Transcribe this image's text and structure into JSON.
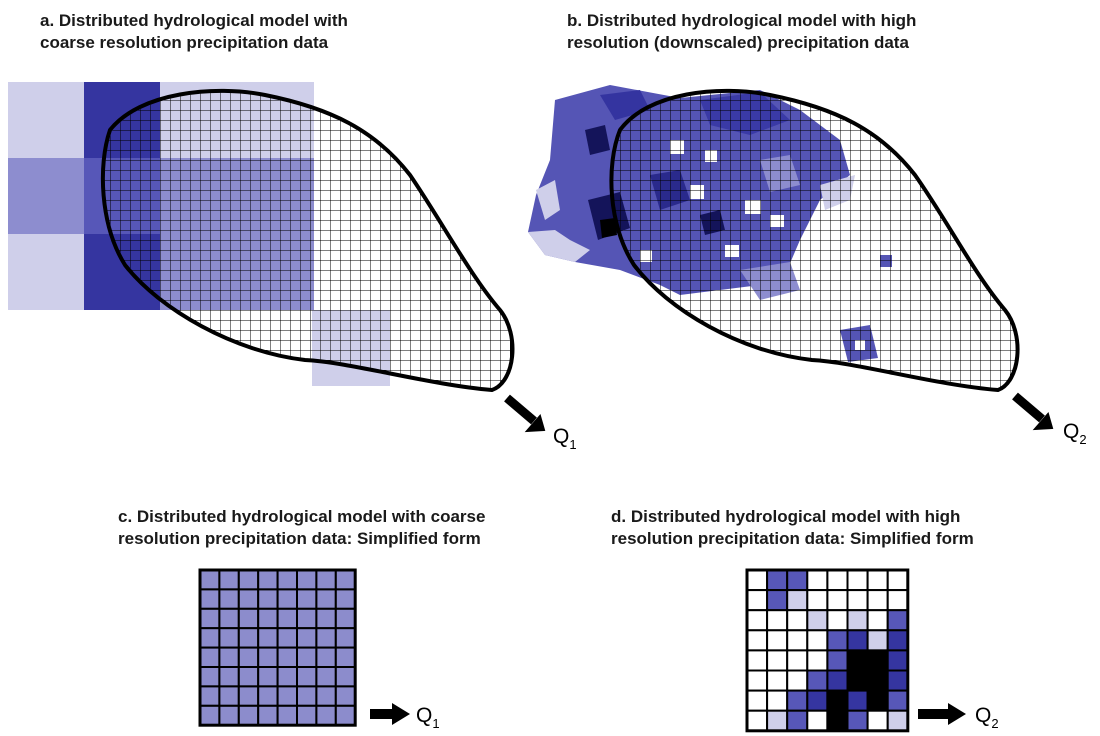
{
  "panels": {
    "a": {
      "caption_line1": "a. Distributed hydrological model with",
      "caption_line2": "coarse resolution precipitation data",
      "outlet": "Q",
      "outlet_sub": "1"
    },
    "b": {
      "caption_line1": "b. Distributed hydrological model with high",
      "caption_line2": "resolution (downscaled) precipitation data",
      "outlet": "Q",
      "outlet_sub": "2"
    },
    "c": {
      "caption_line1": "c. Distributed hydrological model with coarse",
      "caption_line2": "resolution precipitation data: Simplified form",
      "outlet": "Q",
      "outlet_sub": "1"
    },
    "d": {
      "caption_line1": "d. Distributed hydrological model with high",
      "caption_line2": "resolution precipitation data: Simplified form",
      "outlet": "Q",
      "outlet_sub": "2"
    }
  },
  "colors": {
    "c0": "#ffffff",
    "c1": "#cfcfea",
    "c2": "#8d8dcf",
    "c3": "#5757b8",
    "c4": "#3535a0",
    "c5": "#14145a",
    "c6": "#000000",
    "simplified_fill": "#8c8ccc",
    "outline": "#000000"
  },
  "coarse_precip": [
    [
      1,
      4,
      1
    ],
    [
      2,
      3,
      2
    ],
    [
      1,
      4,
      2
    ]
  ],
  "simplified_coarse_level": 2,
  "simplified_high_levels": [
    [
      0,
      3,
      3,
      0,
      0,
      0,
      0,
      0
    ],
    [
      0,
      3,
      1,
      0,
      0,
      0,
      0,
      0
    ],
    [
      0,
      0,
      0,
      1,
      0,
      1,
      0,
      3
    ],
    [
      0,
      0,
      0,
      0,
      3,
      4,
      1,
      4
    ],
    [
      0,
      0,
      0,
      0,
      3,
      6,
      6,
      4
    ],
    [
      0,
      0,
      0,
      3,
      4,
      6,
      6,
      4
    ],
    [
      0,
      0,
      3,
      4,
      6,
      4,
      6,
      3
    ],
    [
      0,
      1,
      3,
      0,
      6,
      3,
      0,
      1
    ]
  ]
}
